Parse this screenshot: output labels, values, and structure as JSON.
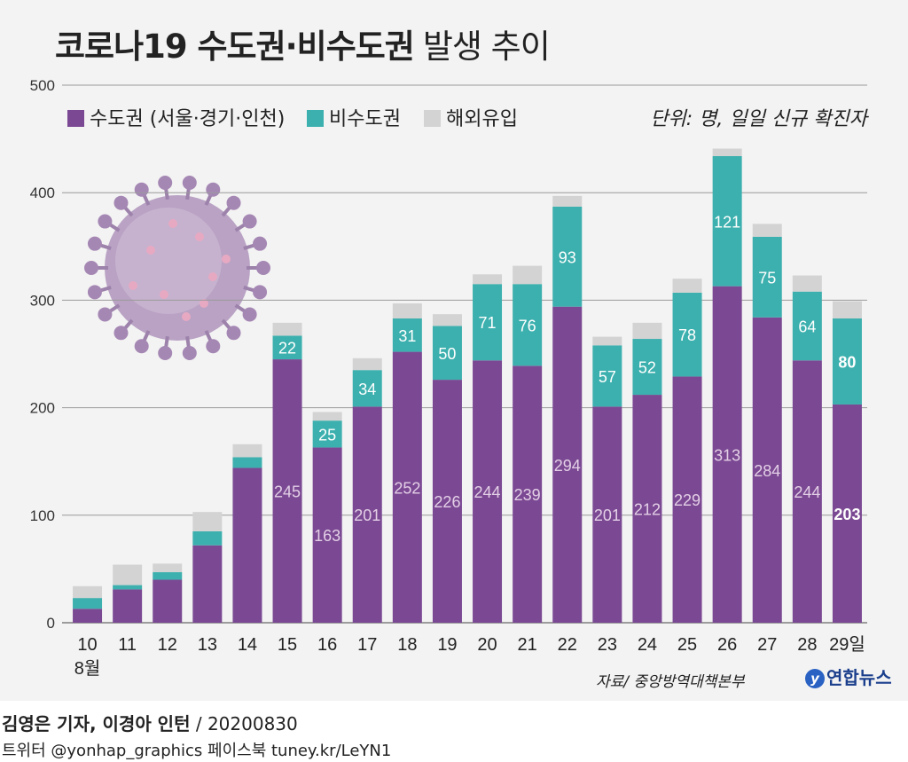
{
  "colors": {
    "capital": "#7b4993",
    "noncapital": "#3cb0ae",
    "overseas": "#d3d3d3",
    "background": "#f3f3f3",
    "grid": "#9a9a9a"
  },
  "header": {
    "title": "코로나19 수도권·비수도권",
    "subtitle": "발생 추이"
  },
  "unit": "단위: 명, 일일 신규 확진자",
  "source": "자료/ 중앙방역대책본부",
  "logo": {
    "icon": "y",
    "text": "연합뉴스"
  },
  "footer": {
    "byline": "김영은 기자, 이경아 인턴",
    "date": "/ 20200830",
    "social": "트위터 @yonhap_graphics  페이스북 tuney.kr/LeYN1"
  },
  "decoration": {
    "virus_illustration": "coronavirus-illustration"
  },
  "chart_data": {
    "type": "bar",
    "stacked": true,
    "categories": [
      "10",
      "11",
      "12",
      "13",
      "14",
      "15",
      "16",
      "17",
      "18",
      "19",
      "20",
      "21",
      "22",
      "23",
      "24",
      "25",
      "26",
      "27",
      "28",
      "29일"
    ],
    "month_label": "8월",
    "ylim": [
      0,
      500
    ],
    "yticks": [
      0,
      100,
      200,
      300,
      400,
      500
    ],
    "grid": true,
    "legend_position": "top-left",
    "series": [
      {
        "name": "수도권 (서울·경기·인천)",
        "key": "capital",
        "values": [
          13,
          31,
          40,
          72,
          144,
          245,
          163,
          201,
          252,
          226,
          244,
          239,
          294,
          201,
          212,
          229,
          313,
          284,
          244,
          203
        ],
        "labels": [
          "",
          "",
          "",
          "",
          "",
          "245",
          "163",
          "201",
          "252",
          "226",
          "244",
          "239",
          "294",
          "201",
          "212",
          "229",
          "313",
          "284",
          "244",
          "203"
        ]
      },
      {
        "name": "비수도권",
        "key": "noncapital",
        "values": [
          10,
          4,
          7,
          13,
          10,
          22,
          25,
          34,
          31,
          50,
          71,
          76,
          93,
          57,
          52,
          78,
          121,
          75,
          64,
          80
        ],
        "labels": [
          "",
          "",
          "",
          "",
          "",
          "22",
          "25",
          "34",
          "31",
          "50",
          "71",
          "76",
          "93",
          "57",
          "52",
          "78",
          "121",
          "75",
          "64",
          "80"
        ]
      },
      {
        "name": "해외유입",
        "key": "overseas",
        "values": [
          11,
          19,
          8,
          18,
          12,
          12,
          8,
          11,
          14,
          11,
          9,
          17,
          10,
          8,
          15,
          13,
          7,
          12,
          15,
          16
        ],
        "labels": []
      }
    ]
  }
}
